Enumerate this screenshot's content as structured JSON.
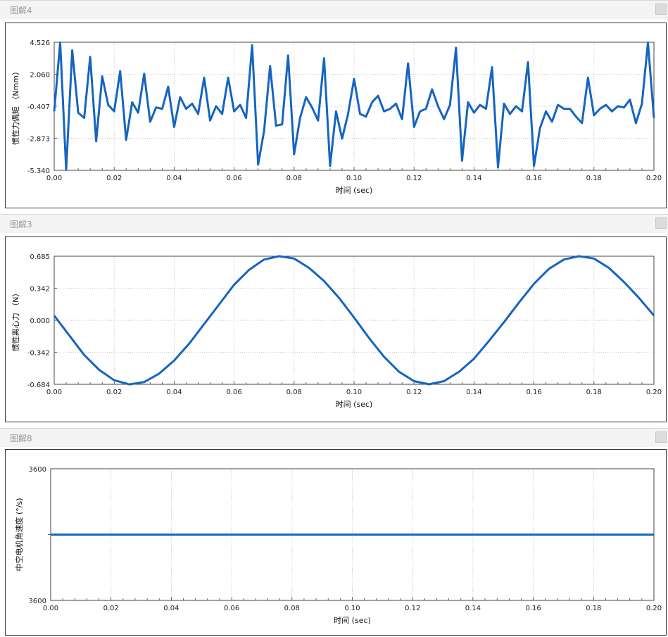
{
  "panels": [
    {
      "title": "图解4"
    },
    {
      "title": "图解3"
    },
    {
      "title": "图解8"
    }
  ],
  "colors": {
    "line": "#1565c0",
    "grid": "#b8b8b8",
    "frame": "#333333",
    "header": "#f4f4f4"
  },
  "chart_data": [
    {
      "type": "line",
      "xlabel": "时间 (sec)",
      "ylabel": "惯性力偶矩 （Nmm）",
      "xlim": [
        0,
        0.2
      ],
      "ylim": [
        -5.34,
        4.526
      ],
      "xticks": [
        0.0,
        0.02,
        0.04,
        0.06,
        0.08,
        0.1,
        0.12,
        0.14,
        0.16,
        0.18,
        0.2
      ],
      "xtick_labels": [
        "0.00",
        "0.02",
        "0.04",
        "0.06",
        "0.08",
        "0.10",
        "0.12",
        "0.14",
        "0.16",
        "0.18",
        "0.20"
      ],
      "yticks": [
        4.526,
        2.06,
        -0.407,
        -2.873,
        -5.34
      ],
      "ytick_labels": [
        "4.526",
        "2.060",
        "-0.407",
        "-2.873",
        "-5.340"
      ],
      "grid": true,
      "series": [
        {
          "x": [
            0.0,
            0.002,
            0.004,
            0.006,
            0.008,
            0.01,
            0.012,
            0.014,
            0.016,
            0.018,
            0.02,
            0.022,
            0.024,
            0.026,
            0.028,
            0.03,
            0.032,
            0.034,
            0.036,
            0.038,
            0.04,
            0.042,
            0.044,
            0.046,
            0.048,
            0.05,
            0.052,
            0.054,
            0.056,
            0.058,
            0.06,
            0.062,
            0.064,
            0.066,
            0.068,
            0.07,
            0.072,
            0.074,
            0.076,
            0.078,
            0.08,
            0.082,
            0.084,
            0.086,
            0.088,
            0.09,
            0.092,
            0.094,
            0.096,
            0.098,
            0.1,
            0.102,
            0.104,
            0.106,
            0.108,
            0.11,
            0.112,
            0.114,
            0.116,
            0.118,
            0.12,
            0.122,
            0.124,
            0.126,
            0.128,
            0.13,
            0.132,
            0.134,
            0.136,
            0.138,
            0.14,
            0.142,
            0.144,
            0.146,
            0.148,
            0.15,
            0.152,
            0.154,
            0.156,
            0.158,
            0.16,
            0.162,
            0.164,
            0.166,
            0.168,
            0.17,
            0.172,
            0.174,
            0.176,
            0.178,
            0.18,
            0.182,
            0.184,
            0.186,
            0.188,
            0.19,
            0.192,
            0.194,
            0.196,
            0.198,
            0.2
          ],
          "y": [
            -0.8,
            4.5,
            -5.3,
            3.9,
            -0.9,
            -1.3,
            3.4,
            -3.1,
            1.9,
            -0.3,
            -0.8,
            2.3,
            -3.0,
            -0.1,
            -0.9,
            2.1,
            -1.6,
            -0.5,
            -0.6,
            1.1,
            -2.0,
            0.3,
            -0.6,
            -0.2,
            -1.0,
            1.8,
            -1.5,
            -0.4,
            -1.0,
            1.8,
            -0.8,
            -0.3,
            -1.3,
            4.3,
            -4.9,
            -2.3,
            2.7,
            -1.9,
            -1.8,
            3.5,
            -4.1,
            -1.3,
            0.3,
            -0.5,
            -1.5,
            3.3,
            -5.0,
            -0.8,
            -2.9,
            -1.0,
            1.7,
            -1.0,
            -1.2,
            -0.1,
            0.4,
            -0.8,
            -0.6,
            -0.2,
            -1.4,
            2.9,
            -2.0,
            -0.8,
            -0.6,
            0.9,
            -0.4,
            -1.4,
            -0.3,
            4.1,
            -4.6,
            -0.1,
            -0.9,
            -0.3,
            -0.6,
            2.6,
            -5.1,
            -0.2,
            -1.0,
            -0.4,
            -0.8,
            3.0,
            -5.0,
            -2.1,
            -0.8,
            -1.6,
            -0.3,
            -0.6,
            -0.6,
            -1.2,
            -1.7,
            1.8,
            -1.1,
            -0.6,
            -0.3,
            -0.8,
            -0.4,
            -0.5,
            0.1,
            -1.7,
            -0.2,
            4.5,
            -1.3
          ]
        }
      ]
    },
    {
      "type": "line",
      "xlabel": "时间 (sec)",
      "ylabel": "惯性离心力 （N）",
      "xlim": [
        0,
        0.2
      ],
      "ylim": [
        -0.684,
        0.685
      ],
      "xticks": [
        0.0,
        0.02,
        0.04,
        0.06,
        0.08,
        0.1,
        0.12,
        0.14,
        0.16,
        0.18,
        0.2
      ],
      "xtick_labels": [
        "0.00",
        "0.02",
        "0.04",
        "0.06",
        "0.08",
        "0.10",
        "0.12",
        "0.14",
        "0.16",
        "0.18",
        "0.20"
      ],
      "yticks": [
        0.685,
        0.342,
        0.0,
        -0.342,
        -0.684
      ],
      "ytick_labels": [
        "0.685",
        "0.342",
        "0.000",
        "-0.342",
        "-0.684"
      ],
      "grid": true,
      "series": [
        {
          "x": [
            0.0,
            0.005,
            0.01,
            0.015,
            0.02,
            0.025,
            0.03,
            0.035,
            0.04,
            0.045,
            0.05,
            0.055,
            0.06,
            0.065,
            0.07,
            0.075,
            0.08,
            0.085,
            0.09,
            0.095,
            0.1,
            0.105,
            0.11,
            0.115,
            0.12,
            0.125,
            0.13,
            0.135,
            0.14,
            0.145,
            0.15,
            0.155,
            0.16,
            0.165,
            0.17,
            0.175,
            0.18,
            0.185,
            0.19,
            0.195,
            0.2
          ],
          "y": [
            0.05,
            -0.16,
            -0.37,
            -0.53,
            -0.64,
            -0.685,
            -0.66,
            -0.57,
            -0.43,
            -0.25,
            -0.04,
            0.17,
            0.38,
            0.54,
            0.65,
            0.685,
            0.66,
            0.56,
            0.42,
            0.24,
            0.03,
            -0.19,
            -0.39,
            -0.55,
            -0.65,
            -0.684,
            -0.65,
            -0.55,
            -0.41,
            -0.22,
            -0.02,
            0.19,
            0.39,
            0.55,
            0.65,
            0.685,
            0.66,
            0.56,
            0.41,
            0.24,
            0.05
          ]
        }
      ]
    },
    {
      "type": "line",
      "xlabel": "时间 (sec)",
      "ylabel": "中空电机角速度 (°/s)",
      "xlim": [
        0,
        0.2
      ],
      "xticks": [
        0.0,
        0.02,
        0.04,
        0.06,
        0.08,
        0.1,
        0.12,
        0.14,
        0.16,
        0.18,
        0.2
      ],
      "xtick_labels": [
        "0.00",
        "0.02",
        "0.04",
        "0.06",
        "0.08",
        "0.10",
        "0.12",
        "0.14",
        "0.16",
        "0.18",
        "0.20"
      ],
      "yticks": [
        3600,
        3600
      ],
      "ytick_labels": [
        "3600",
        "3600"
      ],
      "grid": true,
      "series": [
        {
          "x": [
            0.0,
            0.2
          ],
          "y": [
            3600,
            3600
          ]
        }
      ]
    }
  ]
}
